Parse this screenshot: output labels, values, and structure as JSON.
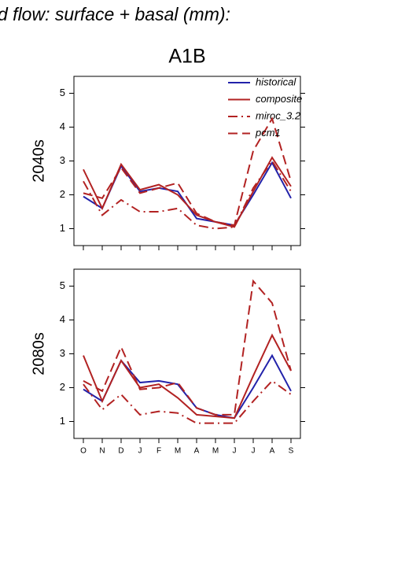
{
  "header": {
    "title": "d flow: surface + basal (mm):",
    "subtitle": "A1B"
  },
  "chart_data": [
    {
      "type": "line",
      "ylabel": "2040s",
      "ylim": [
        0.5,
        5.5
      ],
      "yticks": [
        1,
        2,
        3,
        4,
        5
      ],
      "legend": "upper right",
      "series": [
        {
          "name": "historical",
          "color": "#2222aa",
          "dash": "solid",
          "values": [
            1.95,
            1.6,
            2.85,
            2.1,
            2.2,
            2.1,
            1.3,
            1.2,
            1.1,
            2.0,
            2.95,
            1.9
          ]
        },
        {
          "name": "composite",
          "color": "#b22222",
          "dash": "solid",
          "values": [
            2.75,
            1.6,
            2.9,
            2.15,
            2.3,
            2.0,
            1.4,
            1.2,
            1.05,
            2.1,
            3.1,
            2.25
          ]
        },
        {
          "name": "miroc_3.2",
          "color": "#b22222",
          "dash": "dashdot",
          "values": [
            2.4,
            1.4,
            1.85,
            1.5,
            1.5,
            1.6,
            1.1,
            1.0,
            1.05,
            2.2,
            3.0,
            2.1
          ]
        },
        {
          "name": "pcm1",
          "color": "#b22222",
          "dash": "dashed",
          "values": [
            2.05,
            1.9,
            2.8,
            2.05,
            2.2,
            2.35,
            1.45,
            1.2,
            1.1,
            3.3,
            4.25,
            2.4
          ]
        }
      ]
    },
    {
      "type": "line",
      "ylabel": "2080s",
      "ylim": [
        0.5,
        5.5
      ],
      "yticks": [
        1,
        2,
        3,
        4,
        5
      ],
      "categories": [
        "O",
        "N",
        "D",
        "J",
        "F",
        "M",
        "A",
        "M",
        "J",
        "J",
        "A",
        "S"
      ],
      "series": [
        {
          "color": "#2222aa",
          "dash": "solid",
          "values": [
            1.95,
            1.6,
            2.8,
            2.15,
            2.2,
            2.1,
            1.4,
            1.2,
            1.1,
            2.0,
            2.95,
            1.9
          ]
        },
        {
          "color": "#b22222",
          "dash": "solid",
          "values": [
            2.95,
            1.6,
            2.8,
            2.0,
            2.1,
            1.7,
            1.2,
            1.15,
            1.1,
            2.35,
            3.55,
            2.5
          ]
        },
        {
          "color": "#b22222",
          "dash": "dashdot",
          "values": [
            2.1,
            1.35,
            1.8,
            1.2,
            1.3,
            1.25,
            0.95,
            0.95,
            0.95,
            1.6,
            2.2,
            1.8
          ]
        },
        {
          "color": "#b22222",
          "dash": "dashed",
          "values": [
            2.2,
            1.9,
            3.2,
            1.95,
            2.0,
            2.15,
            1.4,
            1.2,
            1.2,
            5.15,
            4.5,
            2.5
          ]
        }
      ]
    }
  ]
}
